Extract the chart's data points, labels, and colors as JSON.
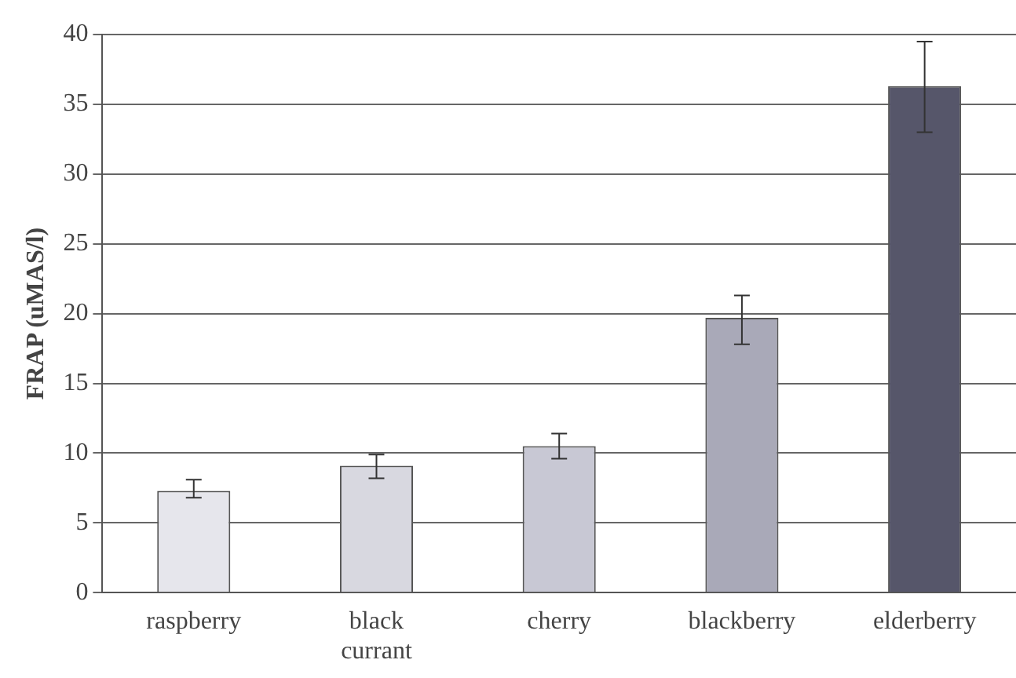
{
  "chart_data": {
    "type": "bar",
    "ylabel": "FRAP (uMAS/l)",
    "categories": [
      "raspberry",
      "black currant",
      "cherry",
      "blackberry",
      "elderberry"
    ],
    "values": [
      7.3,
      9.1,
      10.5,
      19.7,
      36.3
    ],
    "errors": [
      [
        6.8,
        8.1
      ],
      [
        8.2,
        9.9
      ],
      [
        9.6,
        11.4
      ],
      [
        17.8,
        21.3
      ],
      [
        33.0,
        39.5
      ]
    ],
    "colors": [
      "#e6e6ec",
      "#d8d8e0",
      "#c8c8d4",
      "#a9a9b8",
      "#56566a"
    ],
    "ylim": [
      0,
      40
    ],
    "yticks": [
      0,
      5,
      10,
      15,
      20,
      25,
      30,
      35,
      40
    ],
    "grid": "y",
    "legend": false
  }
}
